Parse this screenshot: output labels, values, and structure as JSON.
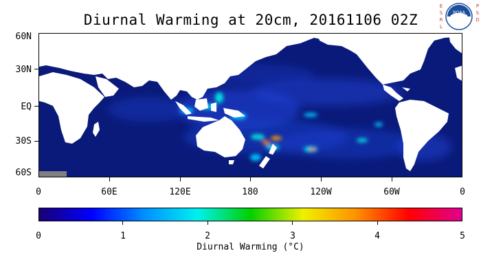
{
  "title": "Diurnal Warming at 20cm, 20161106 02Z",
  "logo": {
    "agency": "NOAA",
    "left_letters": "ESRL",
    "right_letters": "PSD"
  },
  "map": {
    "lat_labels": [
      "60N",
      "30N",
      "EQ",
      "30S",
      "60S"
    ],
    "lon_labels": [
      "0",
      "60E",
      "120E",
      "180",
      "120W",
      "60W",
      "0"
    ],
    "lat_range": [
      -60,
      60
    ],
    "lon_range": [
      0,
      360
    ],
    "colors": {
      "ocean": "#0a1a7a",
      "land": "#ffffff",
      "antarctica": "#808080"
    }
  },
  "colorbar": {
    "ticks": [
      "0",
      "1",
      "2",
      "3",
      "4",
      "5"
    ],
    "label": "Diurnal Warming (°C)",
    "range": [
      0,
      5
    ],
    "colors": [
      "#1a0075",
      "#0000ff",
      "#0090ff",
      "#00f0f0",
      "#00d000",
      "#f0f000",
      "#ff9000",
      "#ff0000",
      "#e00090"
    ]
  }
}
